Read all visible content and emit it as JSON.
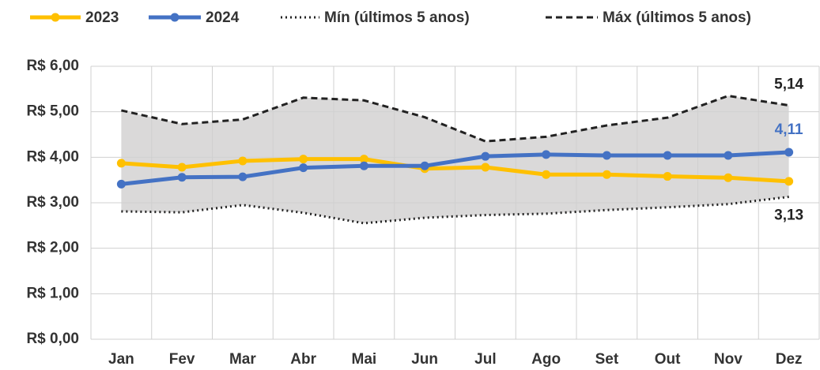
{
  "chart_data": {
    "type": "line",
    "categories": [
      "Jan",
      "Fev",
      "Mar",
      "Abr",
      "Mai",
      "Jun",
      "Jul",
      "Ago",
      "Set",
      "Out",
      "Nov",
      "Dez"
    ],
    "series": [
      {
        "name": "2023",
        "color": "#ffc000",
        "style": "solid",
        "markers": true,
        "values": [
          3.87,
          3.78,
          3.92,
          3.96,
          3.96,
          3.75,
          3.78,
          3.62,
          3.62,
          3.58,
          3.55,
          3.47
        ]
      },
      {
        "name": "2024",
        "color": "#4472c4",
        "style": "solid",
        "markers": true,
        "values": [
          3.41,
          3.56,
          3.57,
          3.77,
          3.81,
          3.81,
          4.02,
          4.06,
          4.04,
          4.04,
          4.04,
          4.11
        ],
        "value_labels": [
          null,
          null,
          null,
          null,
          null,
          null,
          null,
          null,
          null,
          null,
          null,
          "4,11"
        ]
      },
      {
        "name": "Mín (últimos 5 anos)",
        "color": "#222222",
        "style": "dotted",
        "markers": false,
        "values": [
          2.81,
          2.79,
          2.95,
          2.78,
          2.55,
          2.67,
          2.73,
          2.76,
          2.84,
          2.9,
          2.97,
          3.13
        ],
        "value_labels": [
          null,
          null,
          null,
          null,
          null,
          null,
          null,
          null,
          null,
          null,
          null,
          "3,13"
        ]
      },
      {
        "name": "Máx (últimos 5 anos)",
        "color": "#222222",
        "style": "dashed",
        "markers": false,
        "values": [
          5.03,
          4.73,
          4.83,
          5.31,
          5.25,
          4.88,
          4.35,
          4.45,
          4.7,
          4.87,
          5.35,
          5.14
        ],
        "value_labels": [
          null,
          null,
          null,
          null,
          null,
          null,
          null,
          null,
          null,
          null,
          null,
          "5,14"
        ]
      }
    ],
    "range_fill": "#dad9d9",
    "ylim": [
      0,
      6
    ],
    "yticks": [
      {
        "value": 0,
        "label": "R$ 0,00"
      },
      {
        "value": 1,
        "label": "R$ 1,00"
      },
      {
        "value": 2,
        "label": "R$ 2,00"
      },
      {
        "value": 3,
        "label": "R$ 3,00"
      },
      {
        "value": 4,
        "label": "R$ 4,00"
      },
      {
        "value": 5,
        "label": "R$ 5,00"
      },
      {
        "value": 6,
        "label": "R$ 6,00"
      }
    ],
    "grid": true,
    "legend": "top"
  }
}
